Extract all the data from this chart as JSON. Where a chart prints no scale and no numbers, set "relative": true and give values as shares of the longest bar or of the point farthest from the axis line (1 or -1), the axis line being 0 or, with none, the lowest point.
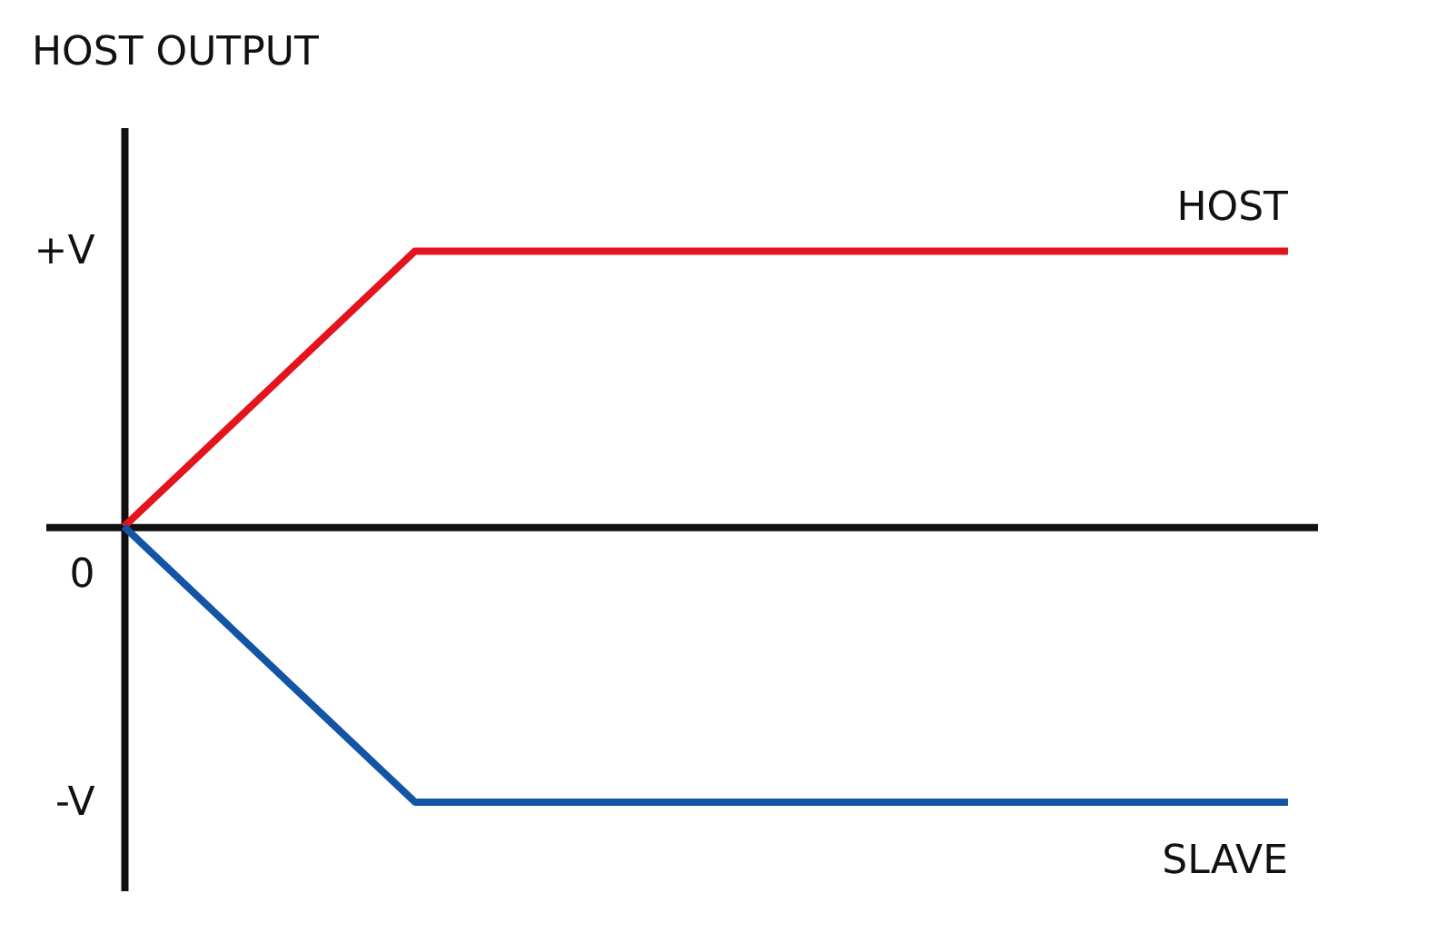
{
  "chart_data": {
    "type": "line",
    "ylabel": "HOST OUTPUT",
    "relative": true,
    "categories": [
      null,
      null,
      null,
      null,
      null
    ],
    "series": [
      {
        "name": "HOST",
        "color": "#e3141d",
        "values": [
          0,
          1,
          1,
          1,
          1
        ]
      },
      {
        "name": "SLAVE",
        "color": "#1454a6",
        "values": [
          0,
          -1,
          -1,
          -1,
          -1
        ]
      }
    ],
    "annotations": [
      "+V",
      "0",
      "-V"
    ],
    "tick_labels": false,
    "grid": false,
    "marker": "none",
    "line_style": "solid"
  }
}
